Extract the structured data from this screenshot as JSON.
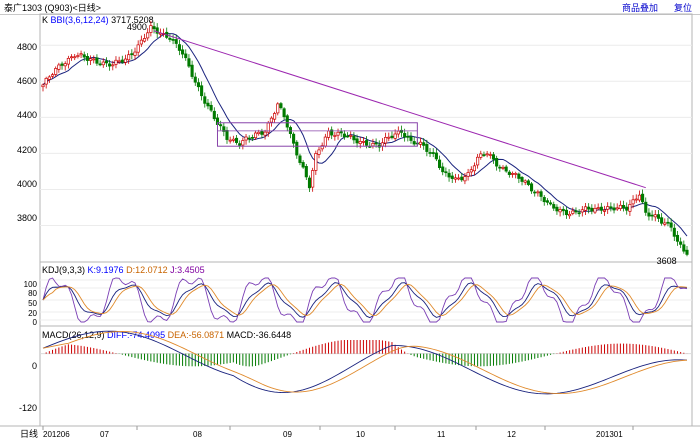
{
  "header": {
    "title": "泰广1303 (Q903)<日线>",
    "add_label": "商品叠加",
    "reset_label": "复位"
  },
  "price_panel": {
    "indicator_prefix": "K",
    "boll_label": "BBI(3,6,12,24)",
    "boll_value": "3717.5208",
    "high_label": "4900",
    "low_label": "3608",
    "y_ticks": [
      "4800",
      "4600",
      "4400",
      "4200",
      "4000",
      "3800"
    ]
  },
  "kdj_panel": {
    "label": "KDJ(9,3,3)",
    "k_label": "K:9.1976",
    "d_label": "D:12.0712",
    "j_label": "J:3.4505",
    "y_ticks": [
      "100",
      "80",
      "50",
      "20",
      "0"
    ]
  },
  "macd_panel": {
    "label": "MACD(26,12,9)",
    "diff_label": "DIFF:-74.4095",
    "dea_label": "DEA:-56.0871",
    "macd_label": "MACD:-36.6448",
    "y_ticks": [
      "0",
      "-120"
    ]
  },
  "x_axis": {
    "period_label": "日线",
    "ticks": [
      "201206",
      "07",
      "08",
      "09",
      "10",
      "11",
      "12",
      "201301"
    ]
  },
  "colors": {
    "up": "#cc0000",
    "down": "#007a00",
    "ma": "#1a237e",
    "trend": "#9c27b0",
    "box": "#8844aa",
    "k": "#1a237e",
    "d": "#e08a2c",
    "j": "#7b3fb5"
  },
  "chart_data": {
    "type": "candlestick",
    "price_ylim": [
      3620,
      4940
    ],
    "close_waypoints": [
      [
        0,
        4580
      ],
      [
        6,
        4700
      ],
      [
        10,
        4750
      ],
      [
        14,
        4720
      ],
      [
        18,
        4710
      ],
      [
        22,
        4690
      ],
      [
        26,
        4720
      ],
      [
        30,
        4800
      ],
      [
        34,
        4890
      ],
      [
        38,
        4860
      ],
      [
        40,
        4850
      ],
      [
        44,
        4750
      ],
      [
        48,
        4600
      ],
      [
        52,
        4460
      ],
      [
        55,
        4360
      ],
      [
        58,
        4290
      ],
      [
        62,
        4260
      ],
      [
        66,
        4290
      ],
      [
        70,
        4330
      ],
      [
        74,
        4470
      ],
      [
        76,
        4400
      ],
      [
        79,
        4250
      ],
      [
        82,
        4120
      ],
      [
        84,
        4020
      ],
      [
        86,
        4180
      ],
      [
        90,
        4320
      ],
      [
        94,
        4310
      ],
      [
        98,
        4270
      ],
      [
        102,
        4260
      ],
      [
        106,
        4240
      ],
      [
        110,
        4300
      ],
      [
        113,
        4330
      ],
      [
        116,
        4260
      ],
      [
        120,
        4240
      ],
      [
        124,
        4180
      ],
      [
        126,
        4090
      ],
      [
        130,
        4050
      ],
      [
        134,
        4090
      ],
      [
        137,
        4170
      ],
      [
        140,
        4200
      ],
      [
        144,
        4130
      ],
      [
        148,
        4080
      ],
      [
        152,
        4040
      ],
      [
        156,
        3980
      ],
      [
        160,
        3900
      ],
      [
        164,
        3880
      ],
      [
        168,
        3870
      ],
      [
        172,
        3890
      ],
      [
        176,
        3900
      ],
      [
        180,
        3890
      ],
      [
        184,
        3900
      ],
      [
        188,
        3980
      ],
      [
        190,
        3860
      ],
      [
        194,
        3840
      ],
      [
        198,
        3800
      ],
      [
        200,
        3700
      ],
      [
        203,
        3640
      ]
    ],
    "annotations": [
      {
        "text": "4900",
        "x": 34,
        "price": 4900
      },
      {
        "text": "3608",
        "x": 201,
        "price": 3608
      }
    ],
    "trendline": [
      [
        35,
        4880
      ],
      [
        190,
        4010
      ]
    ],
    "rect_box": {
      "x0": 55,
      "x1": 118,
      "top": 4370,
      "bottom": 4240
    },
    "kdj_ylim": [
      -10,
      110
    ],
    "macd_ylim": [
      -150,
      30
    ]
  }
}
